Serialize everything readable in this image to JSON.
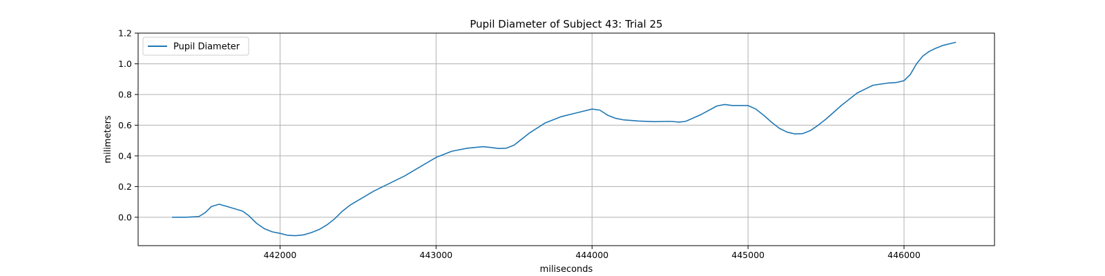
{
  "chart_data": {
    "type": "line",
    "title": "Pupil Diameter of Subject 43: Trial 25",
    "xlabel": "miliseconds",
    "ylabel": "milimeters",
    "xlim": [
      441090,
      446580
    ],
    "ylim": [
      -0.185,
      1.2
    ],
    "xticks": [
      442000,
      443000,
      444000,
      445000,
      446000
    ],
    "yticks": [
      0.0,
      0.2,
      0.4,
      0.6,
      0.8,
      1.0,
      1.2
    ],
    "grid": true,
    "legend": "top-left",
    "series": [
      {
        "name": "Pupil Diameter",
        "color": "#1f77b4",
        "x": [
          441310,
          441400,
          441480,
          441520,
          441560,
          441610,
          441660,
          441710,
          441760,
          441800,
          441850,
          441900,
          441950,
          442000,
          442050,
          442100,
          442150,
          442200,
          442250,
          442300,
          442350,
          442400,
          442450,
          442500,
          442600,
          442700,
          442800,
          442900,
          443000,
          443100,
          443200,
          443300,
          443350,
          443400,
          443450,
          443500,
          443550,
          443600,
          443700,
          443800,
          443900,
          444000,
          444050,
          444100,
          444150,
          444200,
          444300,
          444400,
          444500,
          444560,
          444600,
          444700,
          444800,
          444850,
          444900,
          445000,
          445050,
          445100,
          445150,
          445200,
          445250,
          445300,
          445350,
          445400,
          445450,
          445500,
          445600,
          445700,
          445800,
          445900,
          445950,
          446000,
          446040,
          446080,
          446120,
          446160,
          446200,
          446250,
          446330
        ],
        "values": [
          0.0,
          0.0,
          0.005,
          0.03,
          0.07,
          0.085,
          0.07,
          0.055,
          0.04,
          0.01,
          -0.04,
          -0.075,
          -0.095,
          -0.105,
          -0.118,
          -0.12,
          -0.115,
          -0.1,
          -0.08,
          -0.05,
          -0.01,
          0.04,
          0.08,
          0.11,
          0.17,
          0.22,
          0.27,
          0.33,
          0.39,
          0.43,
          0.45,
          0.46,
          0.455,
          0.448,
          0.45,
          0.47,
          0.51,
          0.55,
          0.615,
          0.655,
          0.68,
          0.705,
          0.698,
          0.665,
          0.645,
          0.635,
          0.627,
          0.623,
          0.625,
          0.62,
          0.625,
          0.67,
          0.725,
          0.735,
          0.728,
          0.728,
          0.705,
          0.665,
          0.62,
          0.58,
          0.555,
          0.543,
          0.545,
          0.565,
          0.6,
          0.64,
          0.73,
          0.81,
          0.86,
          0.875,
          0.878,
          0.89,
          0.93,
          1.0,
          1.05,
          1.08,
          1.1,
          1.12,
          1.14
        ]
      }
    ]
  }
}
